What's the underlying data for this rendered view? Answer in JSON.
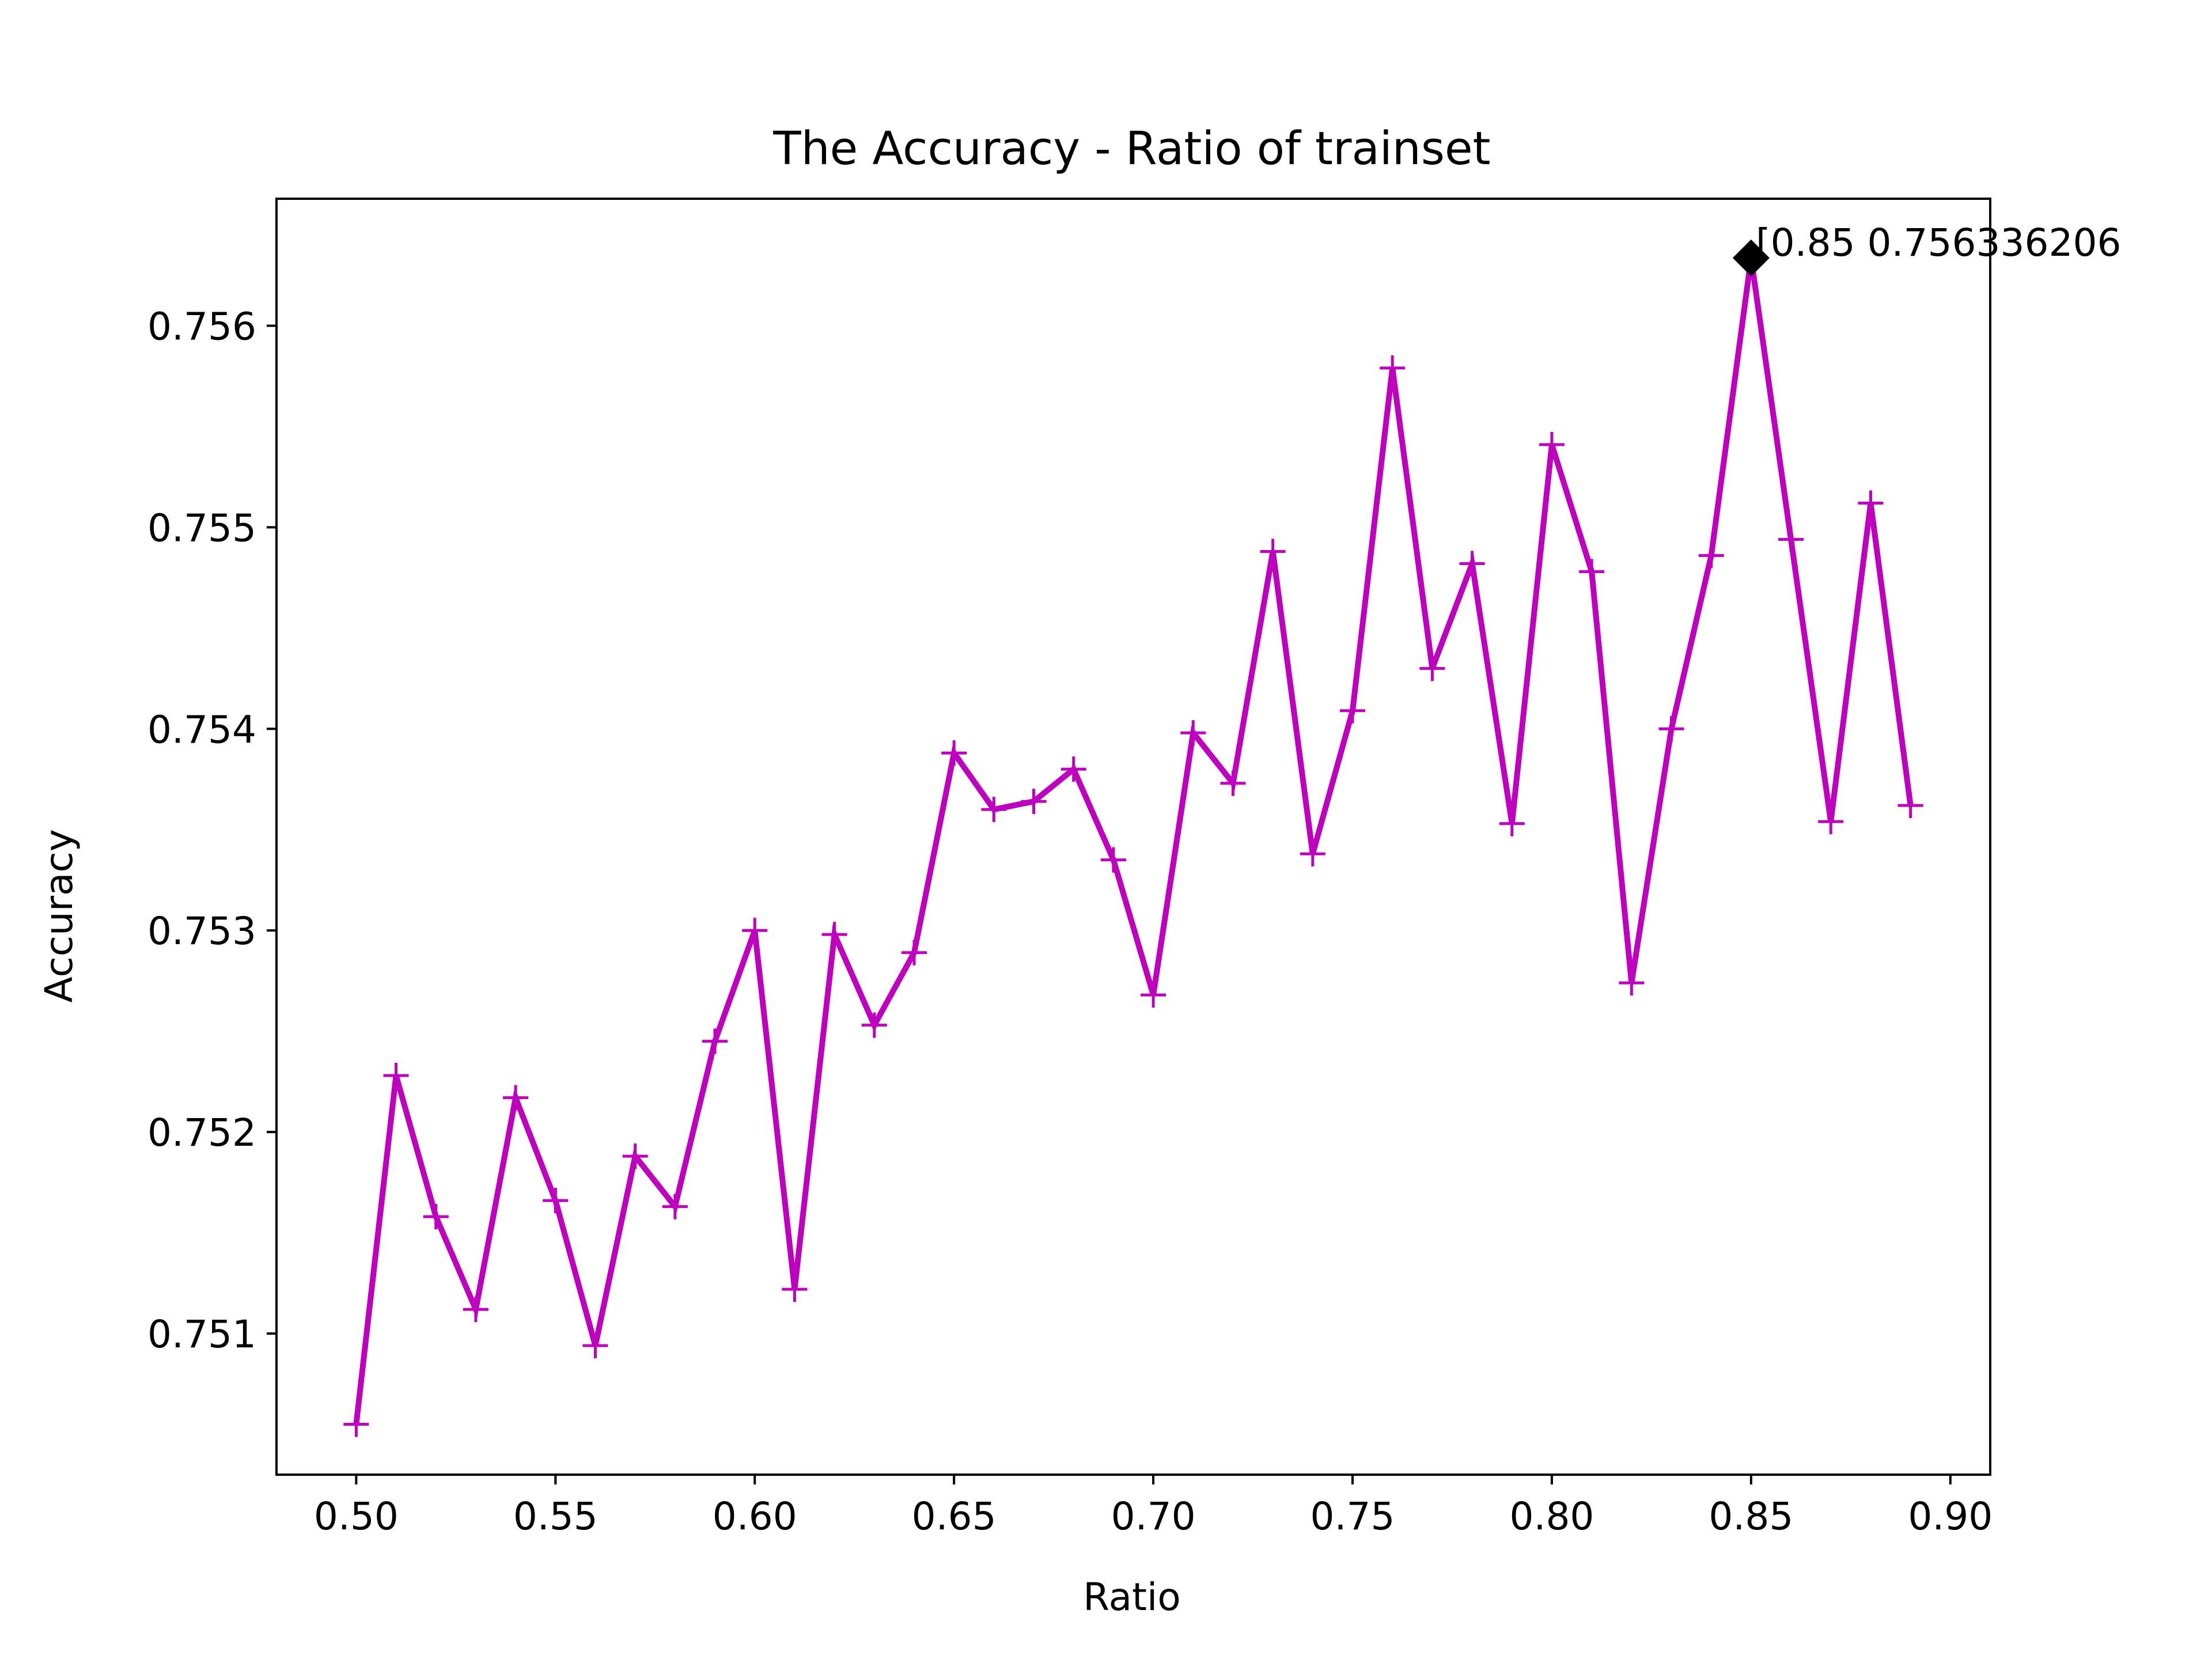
{
  "chart_data": {
    "type": "line",
    "title": "The Accuracy - Ratio of trainset",
    "xlabel": "Ratio",
    "ylabel": "Accuracy",
    "xlim": [
      0.48,
      0.91
    ],
    "ylim": [
      0.7503,
      0.75663
    ],
    "xticks": [
      0.5,
      0.55,
      0.6,
      0.65,
      0.7,
      0.75,
      0.8,
      0.85,
      0.9
    ],
    "xtick_labels": [
      "0.50",
      "0.55",
      "0.60",
      "0.65",
      "0.70",
      "0.75",
      "0.80",
      "0.85",
      "0.90"
    ],
    "yticks": [
      0.751,
      0.752,
      0.753,
      0.754,
      0.755,
      0.756
    ],
    "ytick_labels": [
      "0.751",
      "0.752",
      "0.753",
      "0.754",
      "0.755",
      "0.756"
    ],
    "grid": false,
    "series": [
      {
        "color": "#bf00bf",
        "marker": "+",
        "x": [
          0.5,
          0.51,
          0.52,
          0.53,
          0.54,
          0.55,
          0.56,
          0.57,
          0.58,
          0.59,
          0.6,
          0.61,
          0.62,
          0.63,
          0.64,
          0.65,
          0.66,
          0.67,
          0.68,
          0.69,
          0.7,
          0.71,
          0.72,
          0.73,
          0.74,
          0.75,
          0.76,
          0.77,
          0.78,
          0.79,
          0.8,
          0.81,
          0.82,
          0.83,
          0.84,
          0.85,
          0.86,
          0.87,
          0.88,
          0.89
        ],
        "values": [
          0.75055,
          0.75228,
          0.75158,
          0.75112,
          0.75217,
          0.75166,
          0.75094,
          0.75188,
          0.75163,
          0.75245,
          0.753,
          0.75122,
          0.75298,
          0.75253,
          0.75289,
          0.75388,
          0.7536,
          0.75364,
          0.7538,
          0.75335,
          0.75268,
          0.75398,
          0.75373,
          0.75488,
          0.75338,
          0.75409,
          0.75579,
          0.7543,
          0.75482,
          0.75353,
          0.75541,
          0.75478,
          0.75274,
          0.754,
          0.75486,
          0.756336206,
          0.75494,
          0.75354,
          0.75512,
          0.75362
        ]
      }
    ],
    "annotation": {
      "x": 0.85,
      "y": 0.756336206,
      "marker": "diamond",
      "color": "#000000",
      "text": "[0.85 0.756336206"
    }
  }
}
